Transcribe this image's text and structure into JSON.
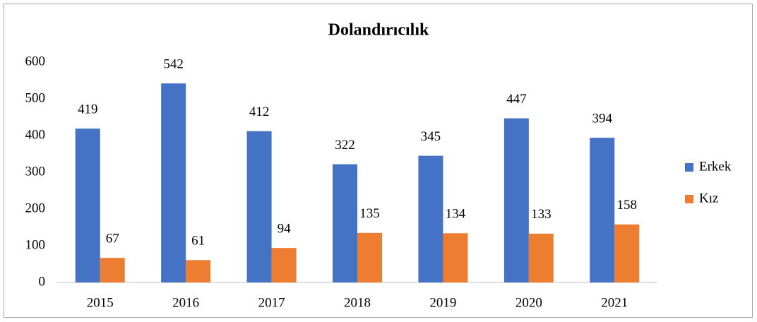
{
  "chart_data": {
    "type": "bar",
    "title": "Dolandırıcılık",
    "categories": [
      "2015",
      "2016",
      "2017",
      "2018",
      "2019",
      "2020",
      "2021"
    ],
    "series": [
      {
        "name": "Erkek",
        "color": "#4472c4",
        "values": [
          419,
          542,
          412,
          322,
          345,
          447,
          394
        ]
      },
      {
        "name": "Kız",
        "color": "#ed7d31",
        "values": [
          67,
          61,
          94,
          135,
          134,
          133,
          158
        ]
      }
    ],
    "ylim": [
      0,
      600
    ],
    "yticks": [
      0,
      100,
      200,
      300,
      400,
      500,
      600
    ],
    "grid": false,
    "legend": "right"
  }
}
